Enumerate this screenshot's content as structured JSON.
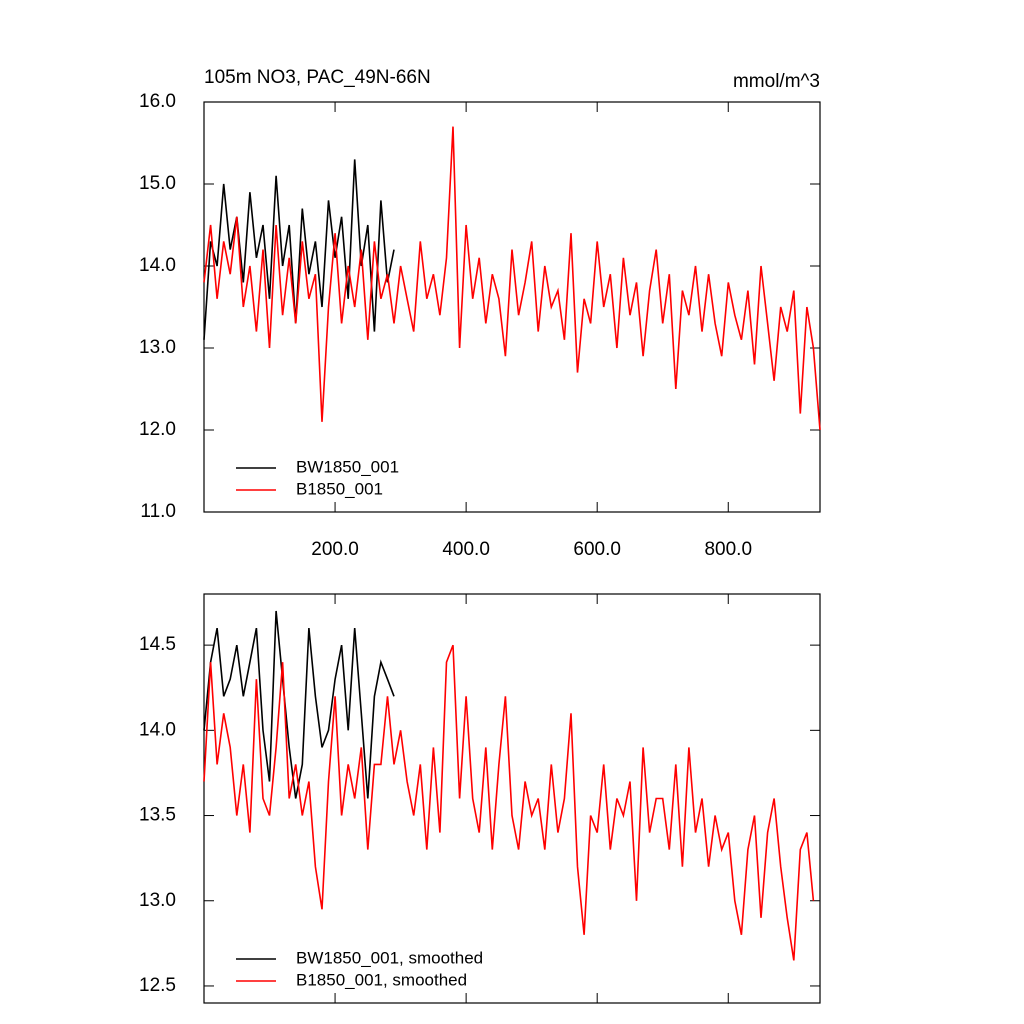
{
  "chart_data": [
    {
      "type": "line",
      "title": "105m NO3, PAC_49N-66N",
      "units": "mmol/m^3",
      "xlim": [
        0,
        940
      ],
      "ylim": [
        11,
        16
      ],
      "xticks": [
        {
          "value": 200,
          "label": "200.0"
        },
        {
          "value": 400,
          "label": "400.0"
        },
        {
          "value": 600,
          "label": "600.0"
        },
        {
          "value": 800,
          "label": "800.0"
        }
      ],
      "yticks": [
        {
          "value": 11,
          "label": "11.0"
        },
        {
          "value": 12,
          "label": "12.0"
        },
        {
          "value": 13,
          "label": "13.0"
        },
        {
          "value": 14,
          "label": "14.0"
        },
        {
          "value": 15,
          "label": "15.0"
        },
        {
          "value": 16,
          "label": "16.0"
        }
      ],
      "xtick_labels": true,
      "legend": "lower left",
      "series": [
        {
          "name": "BW1850_001",
          "color": "#000000",
          "x": [
            0,
            10,
            20,
            30,
            40,
            50,
            60,
            70,
            80,
            90,
            100,
            110,
            120,
            130,
            140,
            150,
            160,
            170,
            180,
            190,
            200,
            210,
            220,
            230,
            240,
            250,
            260,
            270,
            280,
            290
          ],
          "values": [
            13.1,
            14.3,
            14.0,
            15.0,
            14.2,
            14.6,
            13.8,
            14.9,
            14.1,
            14.5,
            13.6,
            15.1,
            14.0,
            14.5,
            13.3,
            14.7,
            13.9,
            14.3,
            13.5,
            14.8,
            14.1,
            14.6,
            13.6,
            15.3,
            14.0,
            14.5,
            13.2,
            14.8,
            13.8,
            14.2
          ]
        },
        {
          "name": "B1850_001",
          "color": "#ff0000",
          "x": [
            0,
            10,
            20,
            30,
            40,
            50,
            60,
            70,
            80,
            90,
            100,
            110,
            120,
            130,
            140,
            150,
            160,
            170,
            180,
            190,
            200,
            210,
            220,
            230,
            240,
            250,
            260,
            270,
            280,
            290,
            300,
            310,
            320,
            330,
            340,
            350,
            360,
            370,
            380,
            390,
            400,
            410,
            420,
            430,
            440,
            450,
            460,
            470,
            480,
            490,
            500,
            510,
            520,
            530,
            540,
            550,
            560,
            570,
            580,
            590,
            600,
            610,
            620,
            630,
            640,
            650,
            660,
            670,
            680,
            690,
            700,
            710,
            720,
            730,
            740,
            750,
            760,
            770,
            780,
            790,
            800,
            810,
            820,
            830,
            840,
            850,
            860,
            870,
            880,
            890,
            900,
            910,
            920,
            930,
            940
          ],
          "values": [
            13.8,
            14.5,
            13.6,
            14.3,
            13.9,
            14.6,
            13.5,
            14.0,
            13.2,
            14.2,
            13.0,
            14.5,
            13.4,
            14.1,
            13.3,
            14.3,
            13.6,
            13.9,
            12.1,
            13.5,
            14.4,
            13.3,
            14.0,
            13.5,
            14.2,
            13.1,
            14.3,
            13.6,
            13.9,
            13.3,
            14.0,
            13.6,
            13.2,
            14.3,
            13.6,
            13.9,
            13.4,
            14.1,
            15.7,
            13.0,
            14.5,
            13.6,
            14.1,
            13.3,
            13.9,
            13.6,
            12.9,
            14.2,
            13.4,
            13.8,
            14.3,
            13.2,
            14.0,
            13.5,
            13.7,
            13.1,
            14.4,
            12.7,
            13.6,
            13.3,
            14.3,
            13.5,
            13.9,
            13.0,
            14.1,
            13.4,
            13.8,
            12.9,
            13.7,
            14.2,
            13.3,
            13.9,
            12.5,
            13.7,
            13.4,
            14.0,
            13.2,
            13.9,
            13.3,
            12.9,
            13.8,
            13.4,
            13.1,
            13.7,
            12.8,
            14.0,
            13.3,
            12.6,
            13.5,
            13.2,
            13.7,
            12.2,
            13.5,
            13.0,
            12.0
          ]
        }
      ]
    },
    {
      "type": "line",
      "xlim": [
        0,
        940
      ],
      "ylim": [
        12.4,
        14.8
      ],
      "xticks": [
        200,
        400,
        600,
        800
      ],
      "yticks": [
        12.5,
        {
          "value": 13,
          "label": "13.0"
        },
        13.5,
        {
          "value": 14,
          "label": "14.0"
        },
        14.5
      ],
      "xtick_labels": false,
      "legend": "lower left",
      "series": [
        {
          "name": "BW1850_001, smoothed",
          "color": "#000000",
          "x": [
            0,
            10,
            20,
            30,
            40,
            50,
            60,
            70,
            80,
            90,
            100,
            110,
            120,
            130,
            140,
            150,
            160,
            170,
            180,
            190,
            200,
            210,
            220,
            230,
            240,
            250,
            260,
            270,
            280,
            290
          ],
          "values": [
            14.0,
            14.4,
            14.6,
            14.2,
            14.3,
            14.5,
            14.2,
            14.4,
            14.6,
            14.0,
            13.7,
            14.7,
            14.3,
            13.9,
            13.6,
            13.8,
            14.6,
            14.2,
            13.9,
            14.0,
            14.3,
            14.5,
            14.0,
            14.6,
            14.1,
            13.6,
            14.2,
            14.4,
            14.3,
            14.2
          ]
        },
        {
          "name": "B1850_001, smoothed",
          "color": "#ff0000",
          "x": [
            0,
            10,
            20,
            30,
            40,
            50,
            60,
            70,
            80,
            90,
            100,
            110,
            120,
            130,
            140,
            150,
            160,
            170,
            180,
            190,
            200,
            210,
            220,
            230,
            240,
            250,
            260,
            270,
            280,
            290,
            300,
            310,
            320,
            330,
            340,
            350,
            360,
            370,
            380,
            390,
            400,
            410,
            420,
            430,
            440,
            450,
            460,
            470,
            480,
            490,
            500,
            510,
            520,
            530,
            540,
            550,
            560,
            570,
            580,
            590,
            600,
            610,
            620,
            630,
            640,
            650,
            660,
            670,
            680,
            690,
            700,
            710,
            720,
            730,
            740,
            750,
            760,
            770,
            780,
            790,
            800,
            810,
            820,
            830,
            840,
            850,
            860,
            870,
            880,
            890,
            900,
            910,
            920,
            930
          ],
          "values": [
            13.7,
            14.4,
            13.8,
            14.1,
            13.9,
            13.5,
            13.8,
            13.4,
            14.3,
            13.6,
            13.5,
            13.9,
            14.4,
            13.6,
            13.8,
            13.5,
            13.7,
            13.2,
            12.95,
            13.7,
            14.2,
            13.5,
            13.8,
            13.6,
            13.9,
            13.3,
            13.8,
            13.8,
            14.2,
            13.8,
            14.0,
            13.7,
            13.5,
            13.8,
            13.3,
            13.9,
            13.4,
            14.4,
            14.5,
            13.6,
            14.2,
            13.6,
            13.4,
            13.9,
            13.3,
            13.8,
            14.2,
            13.5,
            13.3,
            13.7,
            13.5,
            13.6,
            13.3,
            13.8,
            13.4,
            13.6,
            14.1,
            13.2,
            12.8,
            13.5,
            13.4,
            13.8,
            13.3,
            13.6,
            13.5,
            13.7,
            13.0,
            13.9,
            13.4,
            13.6,
            13.6,
            13.3,
            13.8,
            13.2,
            13.9,
            13.4,
            13.6,
            13.2,
            13.5,
            13.3,
            13.4,
            13.0,
            12.8,
            13.3,
            13.5,
            12.9,
            13.4,
            13.6,
            13.2,
            12.9,
            12.65,
            13.3,
            13.4,
            13.0
          ]
        }
      ]
    }
  ]
}
